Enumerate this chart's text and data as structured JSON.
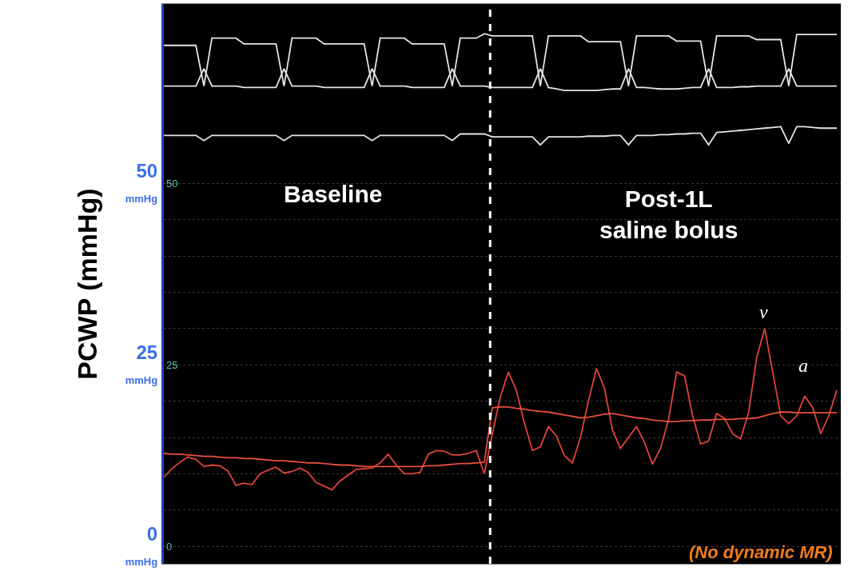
{
  "chart_data": {
    "type": "line",
    "ylabel": "PCWP (mmHg)",
    "categories": [
      null,
      null,
      null,
      null,
      null,
      null,
      null,
      null,
      null,
      null,
      null,
      null,
      null,
      null,
      null,
      null,
      null,
      null,
      null,
      null,
      null,
      null,
      null,
      null,
      null,
      null,
      null,
      null,
      null,
      null,
      null,
      null,
      null,
      null,
      null,
      null,
      null,
      null,
      null,
      null,
      null,
      null,
      null,
      null,
      null,
      null,
      null,
      null,
      null,
      null,
      null,
      null,
      null,
      null,
      null,
      null,
      null,
      null,
      null,
      null,
      null,
      null,
      null,
      null,
      null,
      null,
      null,
      null,
      null,
      null,
      null,
      null,
      null,
      null,
      null,
      null,
      null,
      null,
      null,
      null,
      null,
      null,
      null,
      null,
      null
    ],
    "series": [
      {
        "color": "#e6e6e6",
        "values": [
          69.0,
          69.0,
          69.0,
          69.0,
          69.0,
          63.4,
          70.0,
          70.0,
          70.0,
          70.0,
          69.2,
          69.2,
          69.2,
          69.2,
          69.2,
          63.4,
          70.0,
          70.0,
          70.0,
          70.0,
          69.2,
          69.2,
          69.2,
          69.2,
          69.2,
          69.2,
          63.4,
          70.0,
          70.0,
          70.0,
          70.0,
          69.2,
          69.2,
          69.2,
          69.2,
          69.2,
          63.4,
          70.0,
          70.0,
          70.0,
          70.6,
          70.3,
          70.3,
          70.3,
          70.3,
          70.3,
          70.3,
          63.4,
          70.3,
          70.3,
          70.3,
          70.3,
          70.3,
          69.5,
          69.5,
          69.5,
          69.5,
          69.5,
          63.4,
          70.3,
          70.3,
          70.3,
          70.3,
          70.3,
          69.6,
          69.6,
          69.6,
          69.6,
          63.4,
          70.3,
          70.3,
          70.3,
          70.3,
          70.3,
          69.8,
          69.8,
          69.8,
          69.8,
          63.4,
          70.5,
          70.5,
          70.5,
          70.5,
          70.5,
          70.5
        ]
      },
      {
        "color": "#e6e6e6",
        "values": [
          63.4,
          63.4,
          63.4,
          63.4,
          63.4,
          65.8,
          63.4,
          63.4,
          63.4,
          63.4,
          63.2,
          63.2,
          63.2,
          63.2,
          63.2,
          65.8,
          63.4,
          63.4,
          63.4,
          63.4,
          63.2,
          63.2,
          63.2,
          63.2,
          63.2,
          63.2,
          65.8,
          63.4,
          63.4,
          63.4,
          63.4,
          63.2,
          63.2,
          63.2,
          63.2,
          63.2,
          65.8,
          63.4,
          63.4,
          63.4,
          63.4,
          63.2,
          63.2,
          63.2,
          63.2,
          63.2,
          63.2,
          65.8,
          63.2,
          63.0,
          62.8,
          62.8,
          62.8,
          62.8,
          62.8,
          62.9,
          63.0,
          63.0,
          65.8,
          63.2,
          63.2,
          63.1,
          63.0,
          63.0,
          63.0,
          63.1,
          63.2,
          63.2,
          65.8,
          63.2,
          63.2,
          63.2,
          63.3,
          63.3,
          63.4,
          63.4,
          63.4,
          63.4,
          65.8,
          63.4,
          63.4,
          63.4,
          63.4,
          63.4,
          63.4
        ]
      },
      {
        "color": "#e6e6e6",
        "values": [
          56.6,
          56.6,
          56.6,
          56.6,
          56.6,
          55.9,
          56.6,
          56.6,
          56.6,
          56.6,
          56.6,
          56.6,
          56.6,
          56.6,
          56.6,
          55.9,
          56.6,
          56.6,
          56.6,
          56.6,
          56.6,
          56.6,
          56.6,
          56.6,
          56.6,
          56.6,
          55.9,
          56.6,
          56.6,
          56.6,
          56.6,
          56.6,
          56.6,
          56.6,
          56.6,
          56.6,
          55.9,
          56.8,
          56.8,
          56.8,
          56.8,
          56.4,
          56.4,
          56.4,
          56.4,
          56.4,
          56.4,
          55.3,
          56.4,
          56.4,
          56.4,
          56.4,
          56.4,
          56.5,
          56.5,
          56.5,
          56.6,
          56.6,
          55.3,
          56.6,
          56.6,
          56.6,
          56.7,
          56.7,
          56.8,
          56.8,
          56.9,
          56.9,
          55.3,
          57.0,
          57.1,
          57.2,
          57.3,
          57.4,
          57.5,
          57.6,
          57.7,
          57.8,
          55.5,
          57.8,
          57.8,
          57.7,
          57.6,
          57.6,
          57.6
        ]
      },
      {
        "color": "#e0443a",
        "values": [
          9.5,
          10.7,
          11.6,
          12.3,
          12.0,
          11.0,
          11.2,
          11.1,
          10.4,
          8.4,
          8.7,
          8.5,
          10.0,
          10.5,
          10.9,
          10.1,
          10.3,
          10.8,
          10.2,
          8.8,
          8.3,
          7.8,
          9.0,
          9.8,
          10.6,
          10.7,
          10.8,
          11.5,
          12.7,
          11.2,
          10.0,
          10.0,
          10.2,
          12.7,
          13.2,
          13.1,
          12.6,
          12.6,
          12.8,
          13.2,
          10.0,
          15.5,
          20.6,
          24.0,
          21.5,
          17.0,
          13.2,
          13.7,
          16.5,
          15.2,
          12.5,
          11.5,
          15.0,
          20.0,
          24.5,
          21.8,
          16.0,
          13.5,
          15.0,
          16.5,
          14.3,
          11.3,
          13.5,
          17.5,
          24.0,
          23.5,
          18.0,
          14.1,
          14.5,
          18.3,
          17.6,
          15.5,
          14.8,
          18.5,
          26.0,
          30.0,
          24.0,
          18.0,
          16.9,
          18.0,
          20.7,
          19.1,
          15.5,
          18.0,
          21.5
        ]
      },
      {
        "color": "#e8503f",
        "values": [
          12.8,
          12.7,
          12.7,
          12.6,
          12.5,
          12.4,
          12.4,
          12.3,
          12.2,
          12.2,
          12.1,
          12.1,
          12.0,
          11.9,
          11.8,
          11.8,
          11.7,
          11.6,
          11.5,
          11.5,
          11.4,
          11.3,
          11.2,
          11.2,
          11.1,
          11.0,
          11.0,
          11.0,
          11.0,
          11.0,
          11.0,
          11.0,
          11.0,
          11.1,
          11.1,
          11.2,
          11.3,
          11.4,
          11.4,
          11.5,
          11.6,
          19.1,
          19.2,
          19.2,
          19.0,
          18.9,
          18.7,
          18.6,
          18.5,
          18.3,
          18.1,
          17.9,
          17.7,
          17.8,
          18.0,
          18.2,
          18.3,
          18.1,
          17.9,
          17.7,
          17.6,
          17.4,
          17.3,
          17.2,
          17.2,
          17.3,
          17.3,
          17.4,
          17.4,
          17.5,
          17.5,
          17.5,
          17.6,
          17.6,
          17.7,
          18.0,
          18.3,
          18.5,
          18.5,
          18.4,
          18.4,
          18.4,
          18.4,
          18.4,
          18.4
        ]
      }
    ],
    "ylim": [
      -2.4,
      74.7
    ],
    "yticks": [
      {
        "value": 0,
        "label": "0\nmmHg"
      },
      {
        "value": 5,
        "label": null
      },
      {
        "value": 10,
        "label": null
      },
      {
        "value": 15,
        "label": null
      },
      {
        "value": 20,
        "label": null
      },
      {
        "value": 25,
        "label": "25\nmmHg"
      },
      {
        "value": 30,
        "label": null
      },
      {
        "value": 35,
        "label": null
      },
      {
        "value": 40,
        "label": null
      },
      {
        "value": 45,
        "label": null
      },
      {
        "value": 50,
        "label": "50\nmmHg"
      }
    ],
    "y2lim": [
      -2.4,
      74.7
    ],
    "y2ticks": [
      0,
      25,
      50
    ],
    "grid": "y",
    "marker": "none",
    "line_style": "solid",
    "annotations": [
      "Baseline",
      "Post-1L\nsaline bolus",
      "(No dynamic MR)",
      "v",
      "a"
    ]
  }
}
